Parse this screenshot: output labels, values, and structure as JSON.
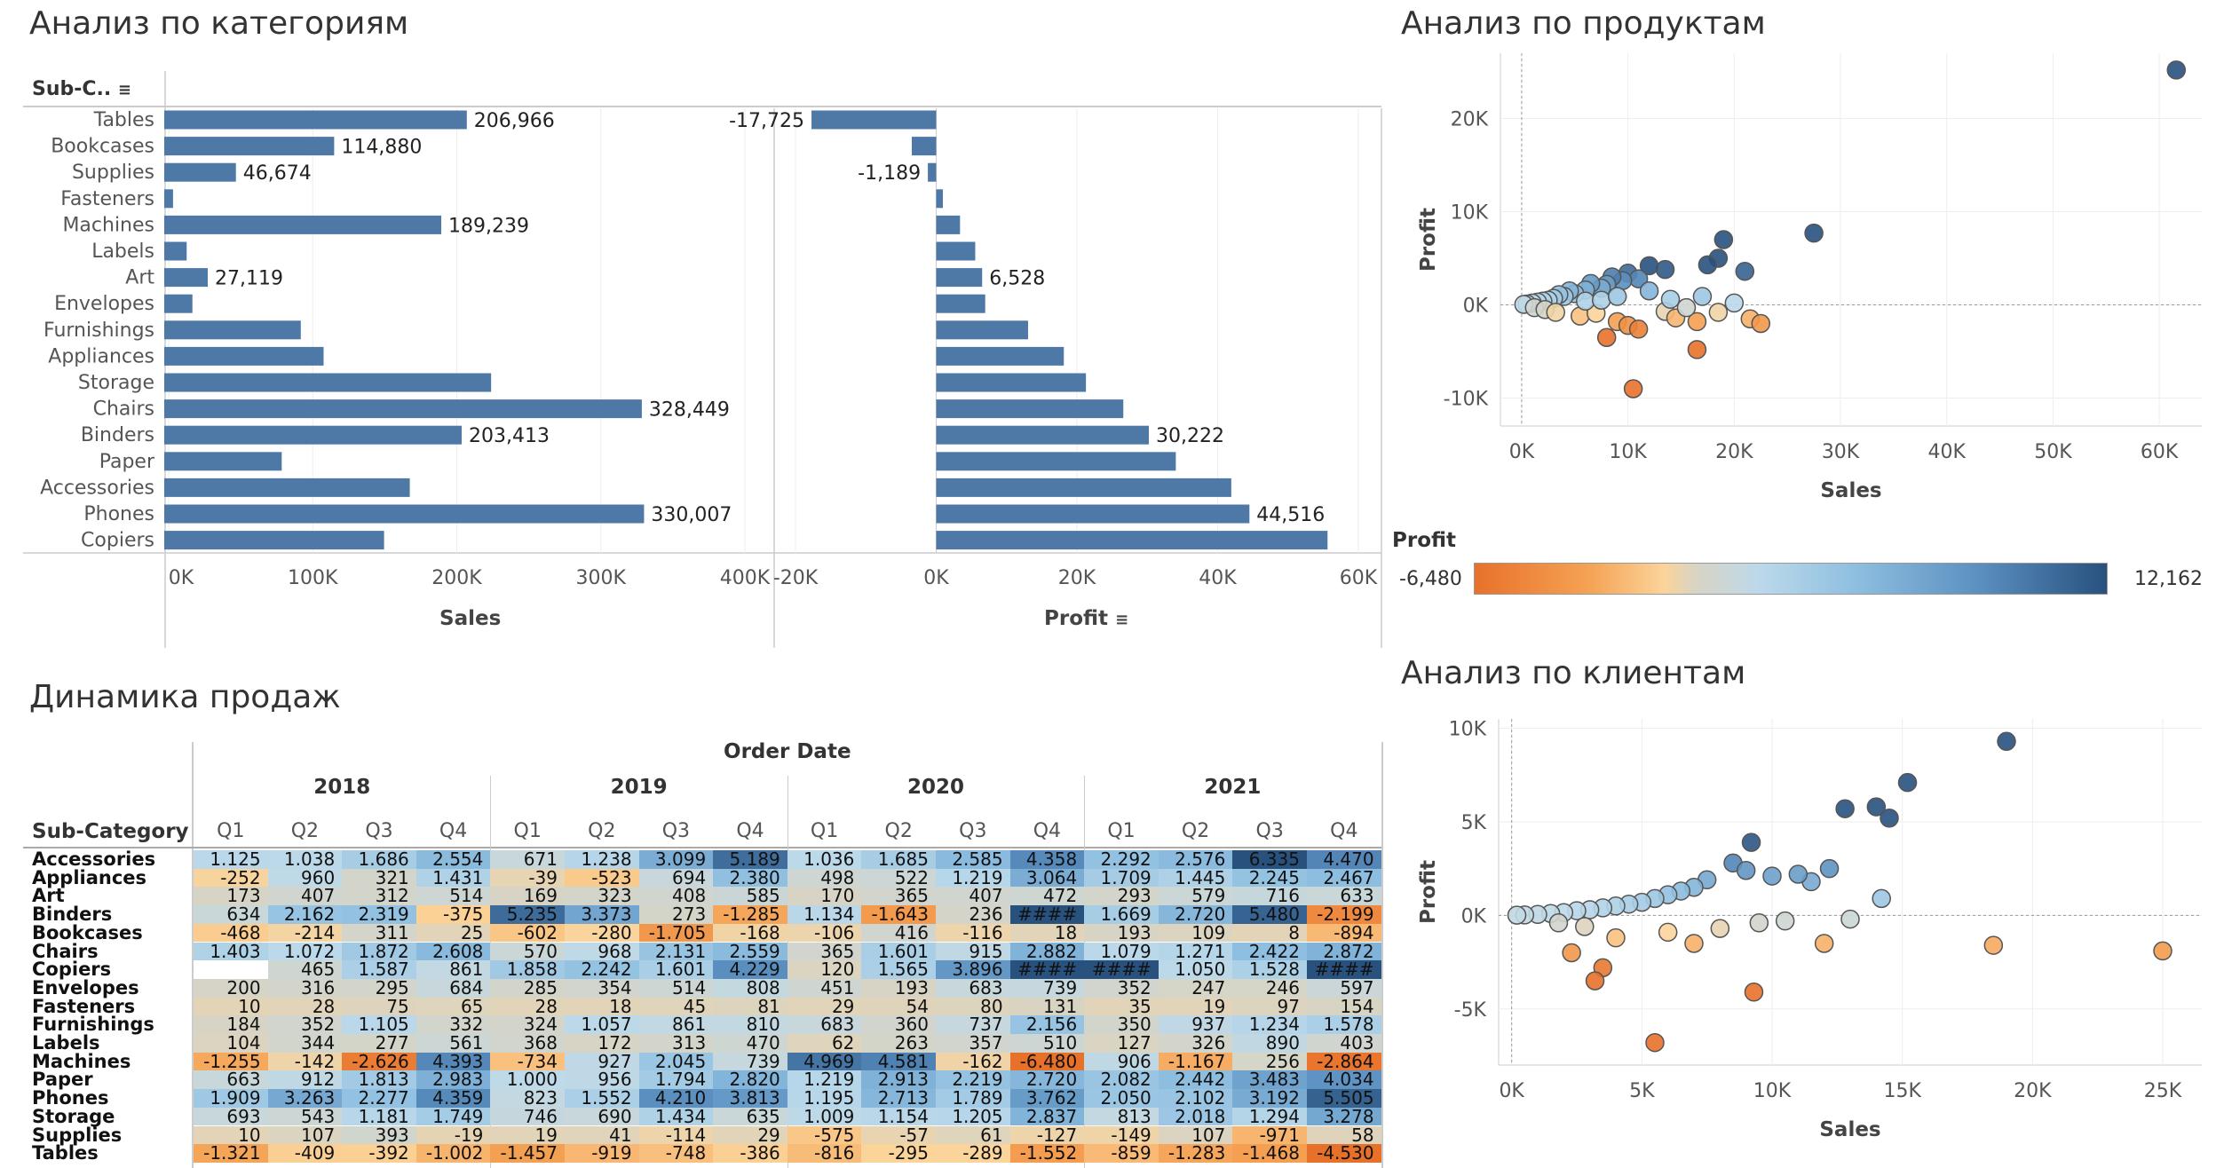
{
  "sections": {
    "categories_title": "Анализ по категориям",
    "products_title": "Анализ по продуктам",
    "dynamics_title": "Динамика продаж",
    "clients_title": "Анализ по клиентам"
  },
  "bar_header": {
    "subcat_label": "Sub-C..",
    "sales_axis_title": "Sales",
    "profit_axis_title": "Profit"
  },
  "chart_data": [
    {
      "type": "bar",
      "title": "",
      "xlabel": "Sales",
      "categories": [
        "Tables",
        "Bookcases",
        "Supplies",
        "Fasteners",
        "Machines",
        "Labels",
        "Art",
        "Envelopes",
        "Furnishings",
        "Appliances",
        "Storage",
        "Chairs",
        "Binders",
        "Paper",
        "Accessories",
        "Phones",
        "Copiers"
      ],
      "values": [
        206966,
        114880,
        46674,
        3024,
        189239,
        12486,
        27119,
        16476,
        91705,
        107532,
        223844,
        328449,
        203413,
        78479,
        167380,
        330007,
        149528
      ],
      "labels": [
        "206,966",
        "114,880",
        "46,674",
        "",
        "189,239",
        "",
        "27,119",
        "",
        "",
        "",
        "",
        "328,449",
        "203,413",
        "",
        "",
        "330,007",
        ""
      ],
      "xlim": [
        0,
        400000
      ],
      "ticks": [
        "0K",
        "100K",
        "200K",
        "300K",
        "400K"
      ],
      "color": "#4e79a7"
    },
    {
      "type": "bar",
      "title": "",
      "xlabel": "Profit",
      "categories": [
        "Tables",
        "Bookcases",
        "Supplies",
        "Fasteners",
        "Machines",
        "Labels",
        "Art",
        "Envelopes",
        "Furnishings",
        "Appliances",
        "Storage",
        "Chairs",
        "Binders",
        "Paper",
        "Accessories",
        "Phones",
        "Copiers"
      ],
      "values": [
        -17725,
        -3473,
        -1189,
        950,
        3385,
        5546,
        6528,
        6964,
        13059,
        18138,
        21279,
        26590,
        30222,
        34054,
        41937,
        44516,
        55618
      ],
      "labels": [
        "-17,725",
        "",
        "-1,189",
        "",
        "",
        "",
        "6,528",
        "",
        "",
        "",
        "",
        "",
        "30,222",
        "",
        "",
        "44,516",
        ""
      ],
      "xlim": [
        -20000,
        60000
      ],
      "ticks": [
        "-20K",
        "0K",
        "20K",
        "40K",
        "60K"
      ],
      "color": "#4e79a7"
    },
    {
      "type": "scatter",
      "title": "",
      "xlabel": "Sales",
      "ylabel": "Profit",
      "xlim": [
        -2000,
        64000
      ],
      "ylim": [
        -13000,
        27000
      ],
      "xticks": [
        "0K",
        "10K",
        "20K",
        "30K",
        "40K",
        "50K",
        "60K"
      ],
      "yticks": [
        "20K",
        "10K",
        "0K",
        "-10K"
      ],
      "points": [
        [
          61600,
          25200
        ],
        [
          27500,
          7700
        ],
        [
          19000,
          7000
        ],
        [
          21000,
          3600
        ],
        [
          18500,
          5000
        ],
        [
          17500,
          4300
        ],
        [
          13500,
          3800
        ],
        [
          12000,
          4200
        ],
        [
          10000,
          3400
        ],
        [
          11000,
          2800
        ],
        [
          9500,
          2600
        ],
        [
          8500,
          3000
        ],
        [
          8000,
          2200
        ],
        [
          7500,
          1800
        ],
        [
          6500,
          2300
        ],
        [
          6000,
          1600
        ],
        [
          5000,
          1200
        ],
        [
          4500,
          1500
        ],
        [
          4000,
          900
        ],
        [
          3500,
          1100
        ],
        [
          3000,
          700
        ],
        [
          2500,
          500
        ],
        [
          2000,
          400
        ],
        [
          1500,
          300
        ],
        [
          1000,
          200
        ],
        [
          500,
          100
        ],
        [
          200,
          50
        ],
        [
          1200,
          -300
        ],
        [
          2200,
          -500
        ],
        [
          3200,
          -800
        ],
        [
          5500,
          -1200
        ],
        [
          7000,
          -900
        ],
        [
          9000,
          -1800
        ],
        [
          10000,
          -2200
        ],
        [
          8000,
          -3500
        ],
        [
          11000,
          -2600
        ],
        [
          13500,
          -700
        ],
        [
          14500,
          -1400
        ],
        [
          16500,
          -1800
        ],
        [
          18500,
          -800
        ],
        [
          20000,
          200
        ],
        [
          21500,
          -1500
        ],
        [
          22500,
          -2000
        ],
        [
          16500,
          -4800
        ],
        [
          10500,
          -9000
        ],
        [
          15500,
          -300
        ],
        [
          6000,
          400
        ],
        [
          7500,
          500
        ],
        [
          9000,
          900
        ],
        [
          12000,
          1500
        ],
        [
          14000,
          600
        ],
        [
          17000,
          900
        ]
      ],
      "colorlim": [
        -6480,
        12162
      ]
    },
    {
      "type": "scatter",
      "title": "",
      "xlabel": "Sales",
      "ylabel": "Profit",
      "xlim": [
        -500,
        26500
      ],
      "ylim": [
        -8000,
        10500
      ],
      "xticks": [
        "0K",
        "5K",
        "10K",
        "15K",
        "20K",
        "25K"
      ],
      "yticks": [
        "10K",
        "5K",
        "0K",
        "-5K"
      ],
      "points": [
        [
          19000,
          9300
        ],
        [
          15200,
          7100
        ],
        [
          14000,
          5800
        ],
        [
          14500,
          5200
        ],
        [
          12800,
          5700
        ],
        [
          14200,
          900
        ],
        [
          11500,
          1800
        ],
        [
          12200,
          2500
        ],
        [
          9200,
          3900
        ],
        [
          11000,
          2200
        ],
        [
          8500,
          2800
        ],
        [
          9000,
          2400
        ],
        [
          10000,
          2100
        ],
        [
          7500,
          1900
        ],
        [
          7000,
          1500
        ],
        [
          6500,
          1300
        ],
        [
          6000,
          1100
        ],
        [
          5500,
          900
        ],
        [
          5000,
          700
        ],
        [
          4500,
          600
        ],
        [
          4000,
          500
        ],
        [
          3500,
          400
        ],
        [
          3000,
          300
        ],
        [
          2500,
          250
        ],
        [
          2000,
          150
        ],
        [
          1500,
          100
        ],
        [
          1000,
          50
        ],
        [
          500,
          20
        ],
        [
          200,
          10
        ],
        [
          25000,
          -1900
        ],
        [
          18500,
          -1600
        ],
        [
          12000,
          -1500
        ],
        [
          9500,
          -400
        ],
        [
          9300,
          -4100
        ],
        [
          5500,
          -6800
        ],
        [
          3500,
          -2800
        ],
        [
          3200,
          -3500
        ],
        [
          2300,
          -2000
        ],
        [
          4000,
          -1200
        ],
        [
          6000,
          -900
        ],
        [
          7000,
          -1500
        ],
        [
          8000,
          -700
        ],
        [
          10500,
          -300
        ],
        [
          13000,
          -200
        ],
        [
          2800,
          -600
        ],
        [
          1800,
          -400
        ]
      ],
      "colorlim": [
        -6480,
        12162
      ]
    },
    {
      "type": "heatmap",
      "title": "",
      "header": "Order Date",
      "row_header": "Sub-Category",
      "years": [
        "2018",
        "2019",
        "2020",
        "2021"
      ],
      "quarters": [
        "Q1",
        "Q2",
        "Q3",
        "Q4"
      ],
      "rows": [
        {
          "name": "Accessories",
          "cells": [
            "1.125",
            "1.038",
            "1.686",
            "2.554",
            "671",
            "1.238",
            "3.099",
            "5.189",
            "1.036",
            "1.685",
            "2.585",
            "4.358",
            "2.292",
            "2.576",
            "6.335",
            "4.470"
          ]
        },
        {
          "name": "Appliances",
          "cells": [
            "-252",
            "960",
            "321",
            "1.431",
            "-39",
            "-523",
            "694",
            "2.380",
            "498",
            "522",
            "1.219",
            "3.064",
            "1.709",
            "1.445",
            "2.245",
            "2.467"
          ]
        },
        {
          "name": "Art",
          "cells": [
            "173",
            "407",
            "312",
            "514",
            "169",
            "323",
            "408",
            "585",
            "170",
            "365",
            "407",
            "472",
            "293",
            "579",
            "716",
            "633"
          ]
        },
        {
          "name": "Binders",
          "cells": [
            "634",
            "2.162",
            "2.319",
            "-375",
            "5.235",
            "3.373",
            "273",
            "-1.285",
            "1.134",
            "-1.643",
            "236",
            "####",
            "1.669",
            "2.720",
            "5.480",
            "-2.199"
          ]
        },
        {
          "name": "Bookcases",
          "cells": [
            "-468",
            "-214",
            "311",
            "25",
            "-602",
            "-280",
            "-1.705",
            "-168",
            "-106",
            "416",
            "-116",
            "18",
            "193",
            "109",
            "8",
            "-894"
          ]
        },
        {
          "name": "Chairs",
          "cells": [
            "1.403",
            "1.072",
            "1.872",
            "2.608",
            "570",
            "968",
            "2.131",
            "2.559",
            "365",
            "1.601",
            "915",
            "2.882",
            "1.079",
            "1.271",
            "2.422",
            "2.872"
          ]
        },
        {
          "name": "Copiers",
          "cells": [
            "",
            "465",
            "1.587",
            "861",
            "1.858",
            "2.242",
            "1.601",
            "4.229",
            "120",
            "1.565",
            "3.896",
            "####",
            "####",
            "1.050",
            "1.528",
            "####"
          ]
        },
        {
          "name": "Envelopes",
          "cells": [
            "200",
            "316",
            "295",
            "684",
            "285",
            "354",
            "514",
            "808",
            "451",
            "193",
            "683",
            "739",
            "352",
            "247",
            "246",
            "597"
          ]
        },
        {
          "name": "Fasteners",
          "cells": [
            "10",
            "28",
            "75",
            "65",
            "28",
            "18",
            "45",
            "81",
            "29",
            "54",
            "80",
            "131",
            "35",
            "19",
            "97",
            "154"
          ]
        },
        {
          "name": "Furnishings",
          "cells": [
            "184",
            "352",
            "1.105",
            "332",
            "324",
            "1.057",
            "861",
            "810",
            "683",
            "360",
            "737",
            "2.156",
            "350",
            "937",
            "1.234",
            "1.578"
          ]
        },
        {
          "name": "Labels",
          "cells": [
            "104",
            "344",
            "277",
            "561",
            "368",
            "172",
            "313",
            "470",
            "62",
            "263",
            "357",
            "510",
            "127",
            "326",
            "890",
            "403"
          ]
        },
        {
          "name": "Machines",
          "cells": [
            "-1.255",
            "-142",
            "-2.626",
            "4.393",
            "-734",
            "927",
            "2.045",
            "739",
            "4.969",
            "4.581",
            "-162",
            "-6.480",
            "906",
            "-1.167",
            "256",
            "-2.864"
          ]
        },
        {
          "name": "Paper",
          "cells": [
            "663",
            "912",
            "1.813",
            "2.983",
            "1.000",
            "956",
            "1.794",
            "2.820",
            "1.219",
            "2.913",
            "2.219",
            "2.720",
            "2.082",
            "2.442",
            "3.483",
            "4.034"
          ]
        },
        {
          "name": "Phones",
          "cells": [
            "1.909",
            "3.263",
            "2.277",
            "4.359",
            "823",
            "1.552",
            "4.210",
            "3.813",
            "1.195",
            "2.713",
            "1.789",
            "3.762",
            "2.050",
            "2.102",
            "3.192",
            "5.505"
          ]
        },
        {
          "name": "Storage",
          "cells": [
            "693",
            "543",
            "1.181",
            "1.749",
            "746",
            "690",
            "1.434",
            "635",
            "1.009",
            "1.154",
            "1.205",
            "2.837",
            "813",
            "2.018",
            "1.294",
            "3.278"
          ]
        },
        {
          "name": "Supplies",
          "cells": [
            "10",
            "107",
            "393",
            "-19",
            "19",
            "41",
            "-114",
            "29",
            "-575",
            "-57",
            "61",
            "-127",
            "-149",
            "107",
            "-971",
            "58"
          ]
        },
        {
          "name": "Tables",
          "cells": [
            "-1.321",
            "-409",
            "-392",
            "-1.002",
            "-1.457",
            "-919",
            "-748",
            "-386",
            "-816",
            "-295",
            "-289",
            "-1.552",
            "-859",
            "-1.283",
            "-1.468",
            "-4.530"
          ]
        }
      ],
      "colorlim": [
        -6480,
        12162
      ]
    }
  ],
  "legend": {
    "title": "Profit",
    "min_label": "-6,480",
    "max_label": "12,162",
    "colors": {
      "neg": "#e8712a",
      "mid": "#d8d4c4",
      "pos": "#28517e"
    }
  }
}
